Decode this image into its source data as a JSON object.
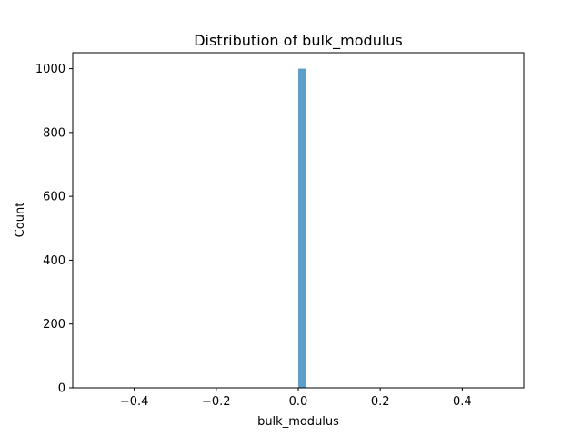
{
  "chart_data": {
    "type": "bar",
    "title": "Distribution of bulk_modulus",
    "xlabel": "bulk_modulus",
    "ylabel": "Count",
    "xlim": [
      -0.55,
      0.55
    ],
    "ylim": [
      0,
      1050
    ],
    "xticks": [
      -0.4,
      -0.2,
      0.0,
      0.2,
      0.4
    ],
    "xtick_labels": [
      "−0.4",
      "−0.2",
      "0.0",
      "0.2",
      "0.4"
    ],
    "yticks": [
      0,
      200,
      400,
      600,
      800,
      1000
    ],
    "ytick_labels": [
      "0",
      "200",
      "400",
      "600",
      "800",
      "1000"
    ],
    "bins": [
      {
        "x_start": -0.5,
        "x_end": 0.0,
        "count": 0
      },
      {
        "x_start": 0.0,
        "x_end": 0.02,
        "count": 1000
      },
      {
        "x_start": 0.02,
        "x_end": 0.5,
        "count": 0
      }
    ],
    "bar_color": "#5f9ec9",
    "grid": false,
    "legend": "none"
  }
}
